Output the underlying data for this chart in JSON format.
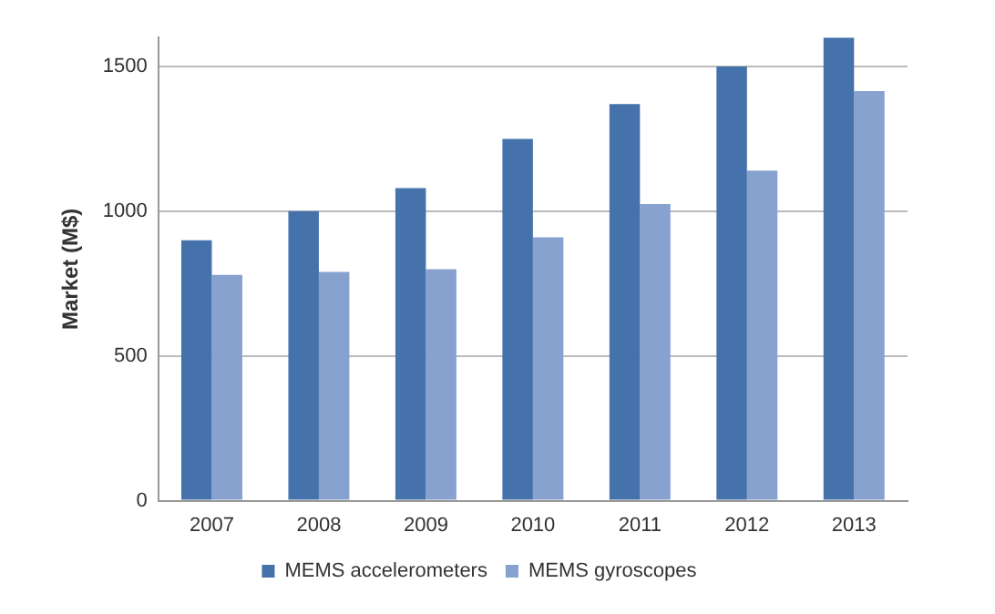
{
  "chart_data": {
    "type": "bar",
    "ylabel": "Market (M$)",
    "categories": [
      "2007",
      "2008",
      "2009",
      "2010",
      "2011",
      "2012",
      "2013"
    ],
    "series": [
      {
        "name": "MEMS accelerometers",
        "color": "#4572aa",
        "values": [
          900,
          1000,
          1080,
          1250,
          1370,
          1500,
          1600
        ]
      },
      {
        "name": "MEMS gyroscopes",
        "color": "#87a2cf",
        "values": [
          780,
          790,
          800,
          910,
          1025,
          1140,
          1415
        ]
      }
    ],
    "ylim": [
      0,
      1600
    ],
    "yticks": [
      0,
      500,
      1000,
      1500
    ],
    "grid": "y",
    "legend": "bottom"
  }
}
